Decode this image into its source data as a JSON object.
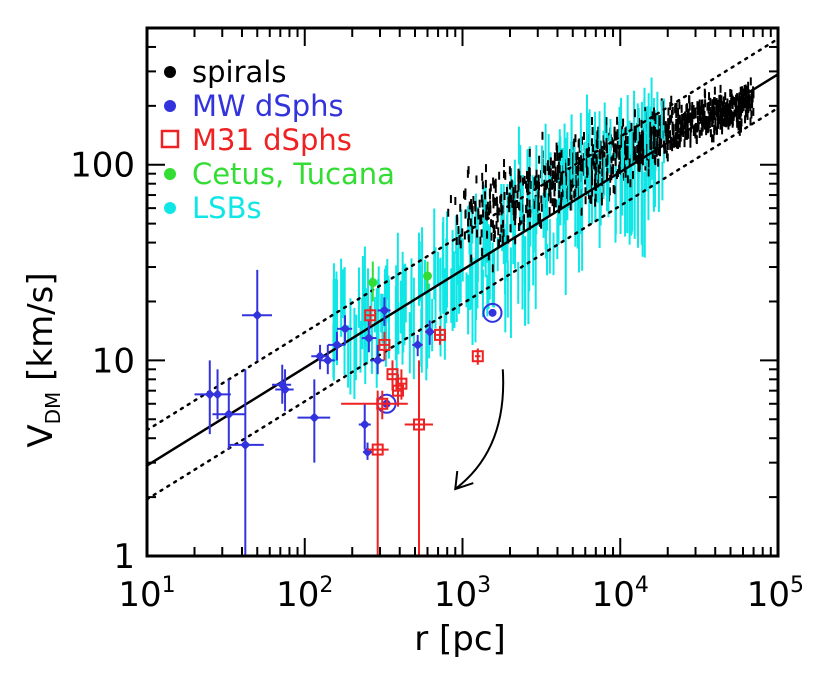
{
  "chart_data": {
    "type": "scatter",
    "title": "",
    "xlabel": "r [pc]",
    "ylabel_main": "V",
    "ylabel_sub": "DM",
    "ylabel_unit": "[km/s]",
    "xscale": "log",
    "yscale": "log",
    "xlim": [
      10,
      100000
    ],
    "ylim": [
      1,
      500
    ],
    "x_tick_labels": [
      {
        "value": 10,
        "base": "10",
        "exp": "1"
      },
      {
        "value": 100,
        "base": "10",
        "exp": "2"
      },
      {
        "value": 1000,
        "base": "10",
        "exp": "3"
      },
      {
        "value": 10000,
        "base": "10",
        "exp": "4"
      },
      {
        "value": 100000,
        "base": "10",
        "exp": "5"
      }
    ],
    "y_tick_labels": [
      {
        "value": 1,
        "label": "1"
      },
      {
        "value": 10,
        "label": "10"
      },
      {
        "value": 100,
        "label": "100"
      }
    ],
    "legend_position": "top-left",
    "legend": [
      {
        "label": "spirals",
        "color": "#000000",
        "marker": "dot"
      },
      {
        "label": "MW dSphs",
        "color": "#3333dd",
        "marker": "dot"
      },
      {
        "label": "M31 dSphs",
        "color": "#ee2222",
        "marker": "open-square"
      },
      {
        "label": "Cetus, Tucana",
        "color": "#33dd33",
        "marker": "dot"
      },
      {
        "label": "LSBs",
        "color": "#11e6e6",
        "marker": "dot"
      }
    ],
    "reference_lines": [
      {
        "name": "fit",
        "style": "solid",
        "points": [
          [
            10,
            2.9
          ],
          [
            100000,
            290
          ]
        ]
      },
      {
        "name": "upper",
        "style": "dotted",
        "points": [
          [
            10,
            4.4
          ],
          [
            100000,
            440
          ]
        ]
      },
      {
        "name": "lower",
        "style": "dotted",
        "points": [
          [
            10,
            1.95
          ],
          [
            100000,
            195
          ]
        ]
      }
    ],
    "series": [
      {
        "name": "MW dSphs",
        "color": "#3333dd",
        "marker": "diamond",
        "points": [
          {
            "x": 25,
            "y": 6.7,
            "xerr": [
              20,
              30
            ],
            "yerr": [
              4.2,
              10
            ]
          },
          {
            "x": 28,
            "y": 6.7,
            "xerr": [
              23,
              34
            ],
            "yerr": [
              5,
              9
            ]
          },
          {
            "x": 33,
            "y": 5.3,
            "xerr": [
              26,
              42
            ],
            "yerr": [
              3.5,
              8
            ]
          },
          {
            "x": 42,
            "y": 3.7,
            "xerr": [
              33,
              55
            ],
            "yerr": [
              1,
              9
            ]
          },
          {
            "x": 50,
            "y": 17,
            "xerr": [
              40,
              62
            ],
            "yerr": [
              10,
              29
            ]
          },
          {
            "x": 72,
            "y": 7.5,
            "xerr": [
              62,
              82
            ],
            "yerr": [
              6,
              9.5
            ]
          },
          {
            "x": 75,
            "y": 7.1,
            "xerr": [
              65,
              85
            ],
            "yerr": [
              5.5,
              9
            ]
          },
          {
            "x": 115,
            "y": 5.1,
            "xerr": [
              90,
              145
            ],
            "yerr": [
              3,
              8
            ]
          },
          {
            "x": 125,
            "y": 10.5,
            "xerr": [
              110,
              140
            ],
            "yerr": [
              9,
              12
            ]
          },
          {
            "x": 140,
            "y": 10,
            "xerr": [
              125,
              155
            ],
            "yerr": [
              8.5,
              12
            ]
          },
          {
            "x": 160,
            "y": 12,
            "xerr": [
              140,
              180
            ],
            "yerr": [
              10,
              14
            ]
          },
          {
            "x": 180,
            "y": 14.5,
            "xerr": [
              160,
              200
            ],
            "yerr": [
              12,
              17
            ]
          },
          {
            "x": 240,
            "y": 4.7,
            "xerr": [
              220,
              262
            ],
            "yerr": [
              3.5,
              6
            ]
          },
          {
            "x": 250,
            "y": 3.4,
            "xerr": [
              235,
              265
            ],
            "yerr": [
              3.1,
              3.8
            ]
          },
          {
            "x": 255,
            "y": 13,
            "xerr": [
              230,
              285
            ],
            "yerr": [
              11,
              16
            ]
          },
          {
            "x": 290,
            "y": 10,
            "xerr": [
              260,
              320
            ],
            "yerr": [
              8.5,
              12
            ]
          },
          {
            "x": 320,
            "y": 18,
            "xerr": [
              290,
              350
            ],
            "yerr": [
              15,
              21
            ]
          },
          {
            "x": 520,
            "y": 12,
            "xerr": [
              480,
              560
            ],
            "yerr": [
              10.5,
              13.5
            ]
          },
          {
            "x": 620,
            "y": 14,
            "xerr": [
              580,
              660
            ],
            "yerr": [
              12,
              16
            ]
          }
        ],
        "circled": [
          {
            "x": 1550,
            "y": 17.5
          },
          {
            "x": 330,
            "y": 6
          }
        ]
      },
      {
        "name": "M31 dSphs",
        "color": "#ee2222",
        "marker": "open-square",
        "points": [
          {
            "x": 260,
            "y": 17,
            "xerr": [
              245,
              275
            ],
            "yerr": [
              15,
              19
            ]
          },
          {
            "x": 290,
            "y": 3.5,
            "xerr": [
              250,
              340
            ],
            "yerr": [
              1,
              7
            ]
          },
          {
            "x": 310,
            "y": 6,
            "xerr": [
              170,
              450
            ],
            "yerr": [
              5,
              7
            ]
          },
          {
            "x": 320,
            "y": 12,
            "xerr": [
              300,
              340
            ],
            "yerr": [
              10,
              14
            ]
          },
          {
            "x": 360,
            "y": 8.5,
            "xerr": [
              330,
              390
            ],
            "yerr": [
              7,
              10
            ]
          },
          {
            "x": 390,
            "y": 7,
            "xerr": [
              360,
              420
            ],
            "yerr": [
              5.8,
              8.5
            ]
          },
          {
            "x": 410,
            "y": 7.6,
            "xerr": [
              380,
              440
            ],
            "yerr": [
              6.3,
              9
            ]
          },
          {
            "x": 530,
            "y": 4.7,
            "xerr": [
              430,
              650
            ],
            "yerr": [
              1,
              10
            ]
          },
          {
            "x": 720,
            "y": 13.5,
            "xerr": [
              680,
              760
            ],
            "yerr": [
              12,
              15
            ]
          },
          {
            "x": 1250,
            "y": 10.5,
            "xerr": [
              1200,
              1300
            ],
            "yerr": [
              9.5,
              11.5
            ]
          }
        ]
      },
      {
        "name": "Cetus, Tucana",
        "color": "#33dd33",
        "marker": "dot",
        "points": [
          {
            "x": 270,
            "y": 25,
            "xerr": [
              270,
              270
            ],
            "yerr": [
              20,
              32
            ]
          },
          {
            "x": 600,
            "y": 27,
            "xerr": [
              600,
              600
            ],
            "yerr": [
              23,
              32
            ]
          }
        ]
      }
    ],
    "lsb_envelope": {
      "x": [
        150,
        300,
        600,
        1000,
        2000,
        4000,
        8000,
        15000,
        20000
      ],
      "y_low": [
        10,
        11,
        13,
        18,
        20,
        34,
        50,
        55,
        55
      ],
      "y_high": [
        22,
        26,
        33,
        55,
        75,
        115,
        150,
        175,
        175
      ]
    },
    "spirals_envelope": {
      "x": [
        800,
        1500,
        3000,
        8000,
        20000,
        50000,
        70000
      ],
      "y_low": [
        38,
        25,
        38,
        60,
        95,
        135,
        150
      ],
      "y_high": [
        80,
        120,
        150,
        190,
        225,
        270,
        290
      ]
    },
    "annotation": {
      "type": "curved-arrow",
      "from": [
        1800,
        9
      ],
      "to": [
        900,
        2.2
      ]
    }
  }
}
